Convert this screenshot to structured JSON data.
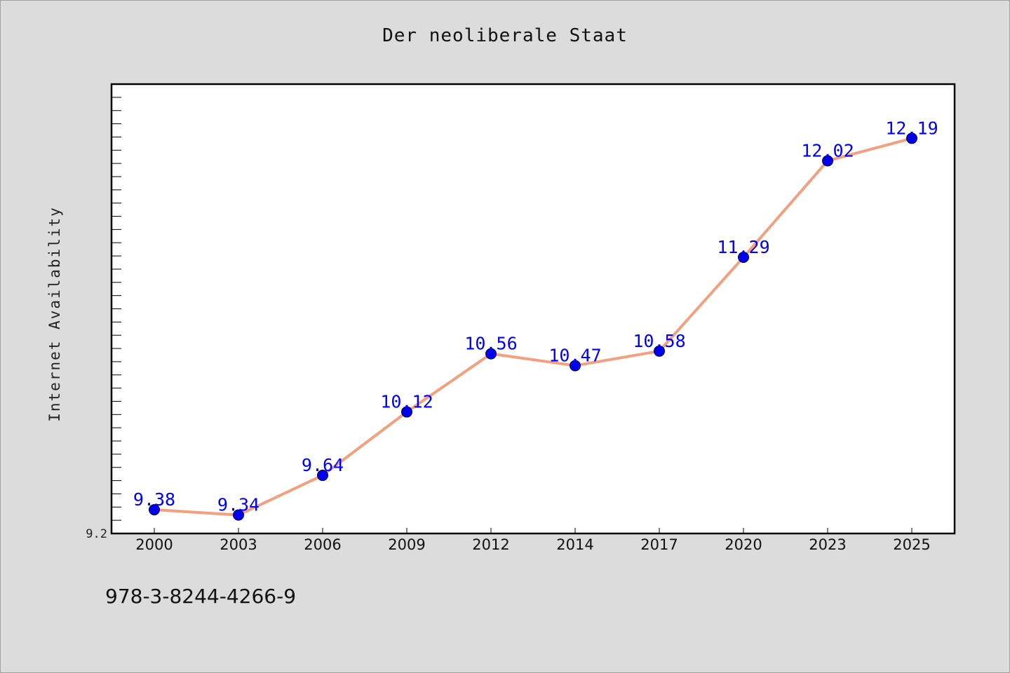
{
  "chart_data": {
    "type": "line",
    "title": "Der neoliberale Staat",
    "xlabel": "",
    "ylabel": "Internet Availability",
    "categories": [
      "2000",
      "2003",
      "2006",
      "2009",
      "2012",
      "2014",
      "2017",
      "2020",
      "2023",
      "2025"
    ],
    "series": [
      {
        "values": [
          9.38,
          9.34,
          9.64,
          10.12,
          10.56,
          10.47,
          10.58,
          11.29,
          12.02,
          12.19
        ]
      }
    ],
    "y_tick_labels": [
      "9.2"
    ],
    "ylim": [
      9.2,
      12.6
    ],
    "grid": false,
    "line_color": "#f4a07f",
    "marker_color": "#0000ee",
    "label_color": "#0000ff"
  },
  "footer": {
    "isbn": "978-3-8244-4266-9"
  }
}
